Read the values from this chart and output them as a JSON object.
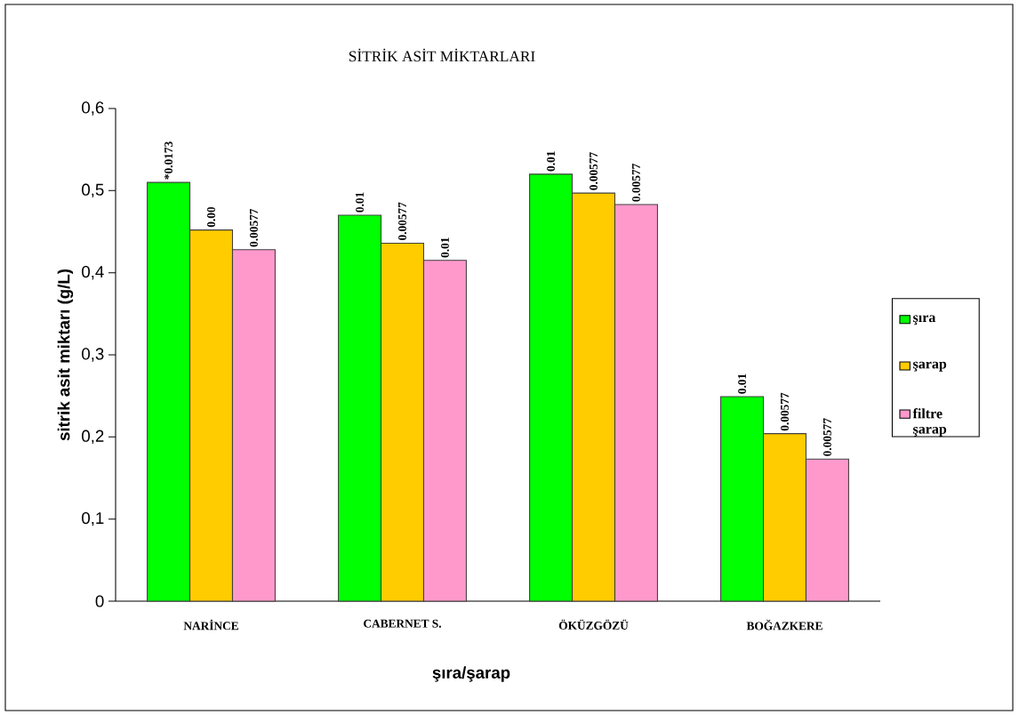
{
  "chart_data": {
    "type": "bar",
    "title": "SİTRİK ASİT MİKTARLARI",
    "xlabel": "şıra/şarap",
    "ylabel": "sitrik asit miktarı (g/L)",
    "categories": [
      "NARİNCE",
      "CABERNET S.",
      "ÖKÜZGÖZÜ",
      "BOĞAZKERE"
    ],
    "series": [
      {
        "name": "şıra",
        "color": "#00ff00",
        "values": [
          0.51,
          0.47,
          0.52,
          0.249
        ]
      },
      {
        "name": "şarap",
        "color": "#ffcc00",
        "values": [
          0.452,
          0.436,
          0.497,
          0.204
        ]
      },
      {
        "name": "filtre şarap",
        "color": "#ff99cc",
        "values": [
          0.428,
          0.415,
          0.483,
          0.173
        ]
      }
    ],
    "annotations": [
      "*0.0173",
      "0.00",
      "0.00577",
      "0.01",
      "0.00577",
      "0.01",
      "0.01",
      "0.00577",
      "0.00577",
      "0.01",
      "0.00577",
      "0.00577"
    ],
    "ylim": [
      0,
      0.6
    ],
    "yticks": [
      0,
      {
        "value": 0.1,
        "label": "0,1"
      },
      {
        "value": 0.2,
        "label": "0,2"
      },
      {
        "value": 0.3,
        "label": "0,3"
      },
      {
        "value": 0.4,
        "label": "0,4"
      },
      {
        "value": 0.5,
        "label": "0,5"
      },
      {
        "value": 0.6,
        "label": "0,6"
      }
    ],
    "grid": false,
    "legend": "right"
  }
}
